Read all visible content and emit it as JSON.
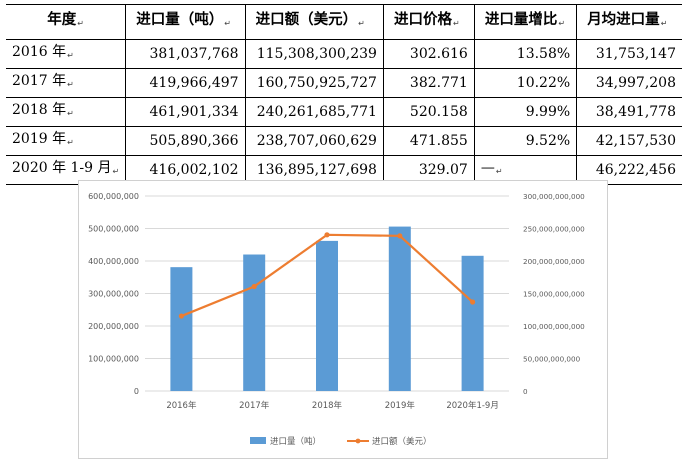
{
  "table": {
    "headers": [
      "年度",
      "进口量（吨）",
      "进口额（美元）",
      "进口价格",
      "进口量增比",
      "月均进口量"
    ],
    "rows": [
      [
        "2016 年",
        "381,037,768",
        "115,308,300,239",
        "302.616",
        "13.58%",
        "31,753,147"
      ],
      [
        "2017 年",
        "419,966,497",
        "160,750,925,727",
        "382.771",
        "10.22%",
        "34,997,208"
      ],
      [
        "2018 年",
        "461,901,334",
        "240,261,685,771",
        "520.158",
        "9.99%",
        "38,491,778"
      ],
      [
        "2019 年",
        "505,890,366",
        "238,707,060,629",
        "471.855",
        "9.52%",
        "42,157,530"
      ],
      [
        "2020 年 1-9 月",
        "416,002,102",
        "136,895,127,698",
        "329.07",
        "—",
        "46,222,456"
      ]
    ]
  },
  "chart_data": {
    "type": "bar",
    "categories": [
      "2016年",
      "2017年",
      "2018年",
      "2019年",
      "2020年1-9月"
    ],
    "series": [
      {
        "name": "进口量（吨）",
        "kind": "bar",
        "axis": "left",
        "color": "#5b9bd5",
        "values": [
          381037768,
          419966497,
          461901334,
          505890366,
          416002102
        ]
      },
      {
        "name": "进口额（美元）",
        "kind": "line",
        "axis": "right",
        "color": "#ed7d31",
        "values": [
          115308300239,
          160750925727,
          240261685771,
          238707060629,
          136895127698
        ]
      }
    ],
    "y_left": {
      "min": 0,
      "max": 600000000,
      "step": 100000000
    },
    "y_right": {
      "min": 0,
      "max": 300000000000,
      "step": 50000000000
    },
    "grid": true,
    "legend": "bottom"
  }
}
